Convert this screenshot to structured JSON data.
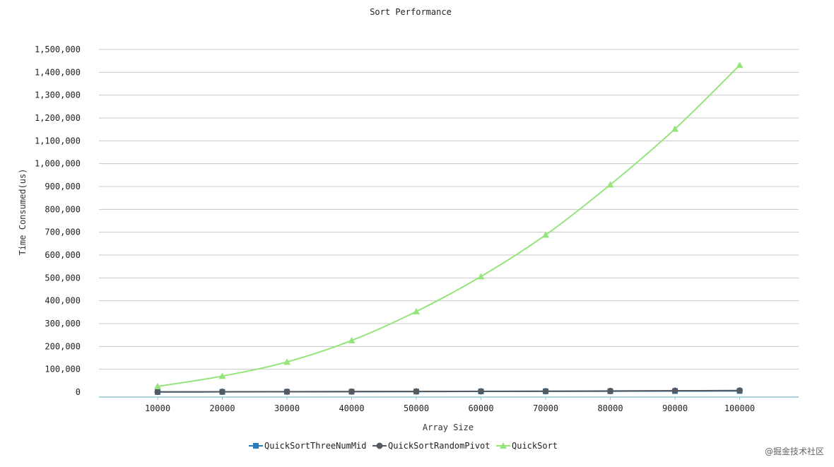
{
  "watermark": "@掘金技术社区",
  "chart_data": {
    "type": "line",
    "title": "Sort Performance",
    "xlabel": "Array Size",
    "ylabel": "Time Consumed(us)",
    "categories": [
      "10000",
      "20000",
      "30000",
      "40000",
      "50000",
      "60000",
      "70000",
      "80000",
      "90000",
      "100000"
    ],
    "y_ticks": [
      "0",
      "100,000",
      "200,000",
      "300,000",
      "400,000",
      "500,000",
      "600,000",
      "700,000",
      "800,000",
      "900,000",
      "1,000,000",
      "1,100,000",
      "1,200,000",
      "1,300,000",
      "1,400,000",
      "1,500,000"
    ],
    "ylim": [
      0,
      1500000
    ],
    "grid": true,
    "legend_position": "bottom",
    "series": [
      {
        "name": "QuickSortThreeNumMid",
        "color": "#2a7ab8",
        "marker": "square",
        "values": [
          500,
          1000,
          1500,
          2000,
          2500,
          3000,
          3500,
          4000,
          4500,
          5000
        ]
      },
      {
        "name": "QuickSortRandomPivot",
        "color": "#555a60",
        "marker": "circle",
        "values": [
          1000,
          1500,
          2000,
          2500,
          3000,
          3500,
          4000,
          5000,
          6000,
          7000
        ]
      },
      {
        "name": "QuickSort",
        "color": "#96e57c",
        "marker": "triangle",
        "values": [
          25000,
          70000,
          132000,
          226000,
          353000,
          506000,
          688000,
          908000,
          1152000,
          1431000
        ]
      }
    ]
  }
}
